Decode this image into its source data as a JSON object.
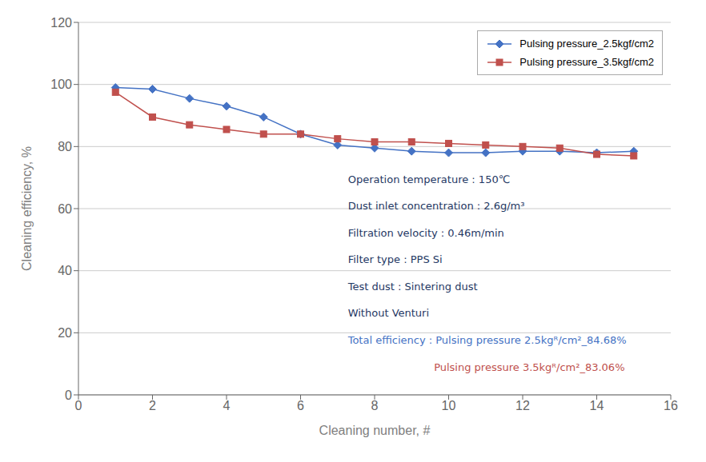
{
  "chart_data": {
    "type": "line",
    "x": [
      1,
      2,
      3,
      4,
      5,
      6,
      7,
      8,
      9,
      10,
      11,
      12,
      13,
      14,
      15
    ],
    "series": [
      {
        "name": "Pulsing pressure_2.5kgf/cm2",
        "color": "#4472C4",
        "marker": "diamond",
        "values": [
          99.0,
          98.5,
          95.5,
          93.0,
          89.5,
          84.0,
          80.5,
          79.5,
          78.5,
          78.0,
          78.0,
          78.5,
          78.5,
          78.0,
          78.5
        ]
      },
      {
        "name": "Pulsing pressure_3.5kgf/cm2",
        "color": "#C0504D",
        "marker": "square",
        "values": [
          97.5,
          89.5,
          87.0,
          85.5,
          84.0,
          84.0,
          82.5,
          81.5,
          81.5,
          81.0,
          80.5,
          80.0,
          79.5,
          77.5,
          77.0
        ]
      }
    ],
    "xlabel": "Cleaning number, #",
    "ylabel": "Cleaning efficiency, %",
    "xlim": [
      0,
      16
    ],
    "ylim": [
      0,
      120
    ],
    "xticks": [
      0,
      2,
      4,
      6,
      8,
      10,
      12,
      14,
      16
    ],
    "yticks": [
      0,
      20,
      40,
      60,
      80,
      100,
      120
    ],
    "grid": "y",
    "legend": "upper right",
    "annotations": [
      {
        "text": "Operation temperature : 150℃",
        "color": "#1F3864"
      },
      {
        "text": "Dust inlet concentration : 2.6g/m³",
        "color": "#1F3864"
      },
      {
        "text": "Filtration velocity : 0.46m/min",
        "color": "#1F3864"
      },
      {
        "text": "Filter type : PPS Si",
        "color": "#1F3864"
      },
      {
        "text": "Test dust : Sintering dust",
        "color": "#1F3864"
      },
      {
        "text": "Without Venturi",
        "color": "#1F3864"
      },
      {
        "text": "Total efficiency : Pulsing pressure 2.5kgᴿ/cm²_84.68%",
        "color": "#4472C4"
      },
      {
        "text": "                          Pulsing pressure 3.5kgᴿ/cm²_83.06%",
        "color": "#C0504D"
      }
    ]
  }
}
